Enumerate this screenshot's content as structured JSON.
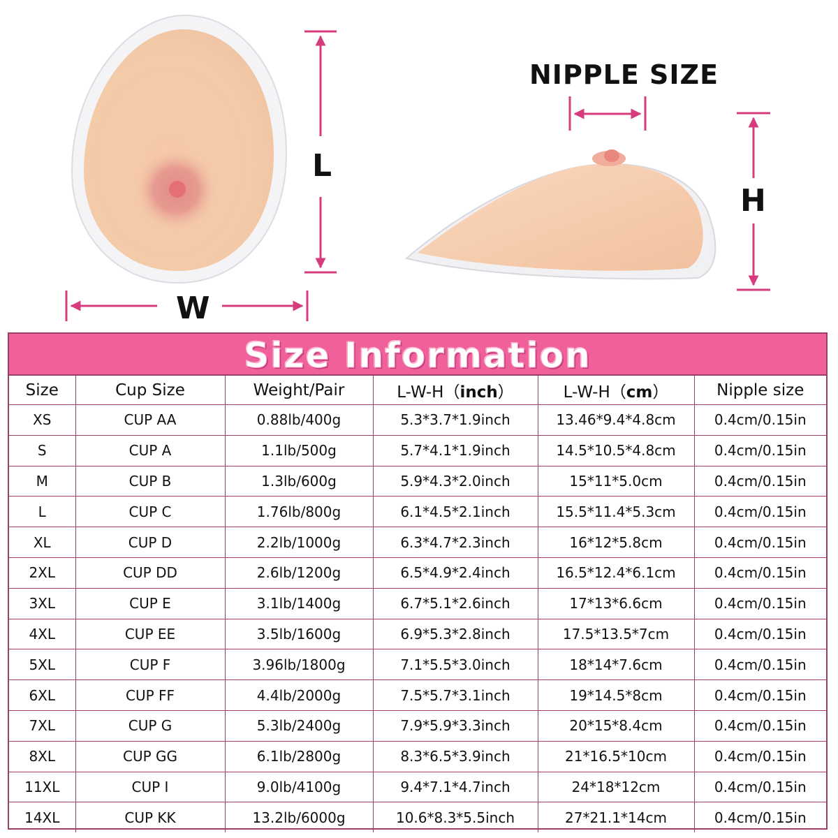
{
  "diagram": {
    "length_label": "L",
    "width_label": "W",
    "height_label": "H",
    "nipple_label": "NIPPLE SIZE",
    "arrow_color": "#d63c7d"
  },
  "table": {
    "title": "Size Information",
    "banner_color": "#f0609a",
    "headers": {
      "size": "Size",
      "cup_size": "Cup Size",
      "weight": "Weight/Pair",
      "lwh_inch_prefix": "L-W-H（",
      "lwh_inch_unit": "inch",
      "lwh_inch_suffix": "）",
      "lwh_cm_prefix": "L-W-H（",
      "lwh_cm_unit": "cm",
      "lwh_cm_suffix": "）",
      "nipple": "Nipple size"
    },
    "rows": [
      {
        "size": "XS",
        "cup": "CUP AA",
        "weight": "0.88lb/400g",
        "inch": "5.3*3.7*1.9inch",
        "cm": "13.46*9.4*4.8cm",
        "nipple": "0.4cm/0.15in"
      },
      {
        "size": "S",
        "cup": "CUP A",
        "weight": "1.1lb/500g",
        "inch": "5.7*4.1*1.9inch",
        "cm": "14.5*10.5*4.8cm",
        "nipple": "0.4cm/0.15in"
      },
      {
        "size": "M",
        "cup": "CUP B",
        "weight": "1.3lb/600g",
        "inch": "5.9*4.3*2.0inch",
        "cm": "15*11*5.0cm",
        "nipple": "0.4cm/0.15in"
      },
      {
        "size": "L",
        "cup": "CUP C",
        "weight": "1.76lb/800g",
        "inch": "6.1*4.5*2.1inch",
        "cm": "15.5*11.4*5.3cm",
        "nipple": "0.4cm/0.15in"
      },
      {
        "size": "XL",
        "cup": "CUP D",
        "weight": "2.2lb/1000g",
        "inch": "6.3*4.7*2.3inch",
        "cm": "16*12*5.8cm",
        "nipple": "0.4cm/0.15in"
      },
      {
        "size": "2XL",
        "cup": "CUP DD",
        "weight": "2.6lb/1200g",
        "inch": "6.5*4.9*2.4inch",
        "cm": "16.5*12.4*6.1cm",
        "nipple": "0.4cm/0.15in"
      },
      {
        "size": "3XL",
        "cup": "CUP E",
        "weight": "3.1lb/1400g",
        "inch": "6.7*5.1*2.6inch",
        "cm": "17*13*6.6cm",
        "nipple": "0.4cm/0.15in"
      },
      {
        "size": "4XL",
        "cup": "CUP EE",
        "weight": "3.5lb/1600g",
        "inch": "6.9*5.3*2.8inch",
        "cm": "17.5*13.5*7cm",
        "nipple": "0.4cm/0.15in"
      },
      {
        "size": "5XL",
        "cup": "CUP F",
        "weight": "3.96lb/1800g",
        "inch": "7.1*5.5*3.0inch",
        "cm": "18*14*7.6cm",
        "nipple": "0.4cm/0.15in"
      },
      {
        "size": "6XL",
        "cup": "CUP FF",
        "weight": "4.4lb/2000g",
        "inch": "7.5*5.7*3.1inch",
        "cm": "19*14.5*8cm",
        "nipple": "0.4cm/0.15in"
      },
      {
        "size": "7XL",
        "cup": "CUP G",
        "weight": "5.3lb/2400g",
        "inch": "7.9*5.9*3.3inch",
        "cm": "20*15*8.4cm",
        "nipple": "0.4cm/0.15in"
      },
      {
        "size": "8XL",
        "cup": "CUP GG",
        "weight": "6.1lb/2800g",
        "inch": "8.3*6.5*3.9inch",
        "cm": "21*16.5*10cm",
        "nipple": "0.4cm/0.15in"
      },
      {
        "size": "11XL",
        "cup": "CUP I",
        "weight": "9.0lb/4100g",
        "inch": "9.4*7.1*4.7inch",
        "cm": "24*18*12cm",
        "nipple": "0.4cm/0.15in"
      },
      {
        "size": "14XL",
        "cup": "CUP KK",
        "weight": "13.2lb/6000g",
        "inch": "10.6*8.3*5.5inch",
        "cm": "27*21.1*14cm",
        "nipple": "0.4cm/0.15in"
      }
    ]
  }
}
